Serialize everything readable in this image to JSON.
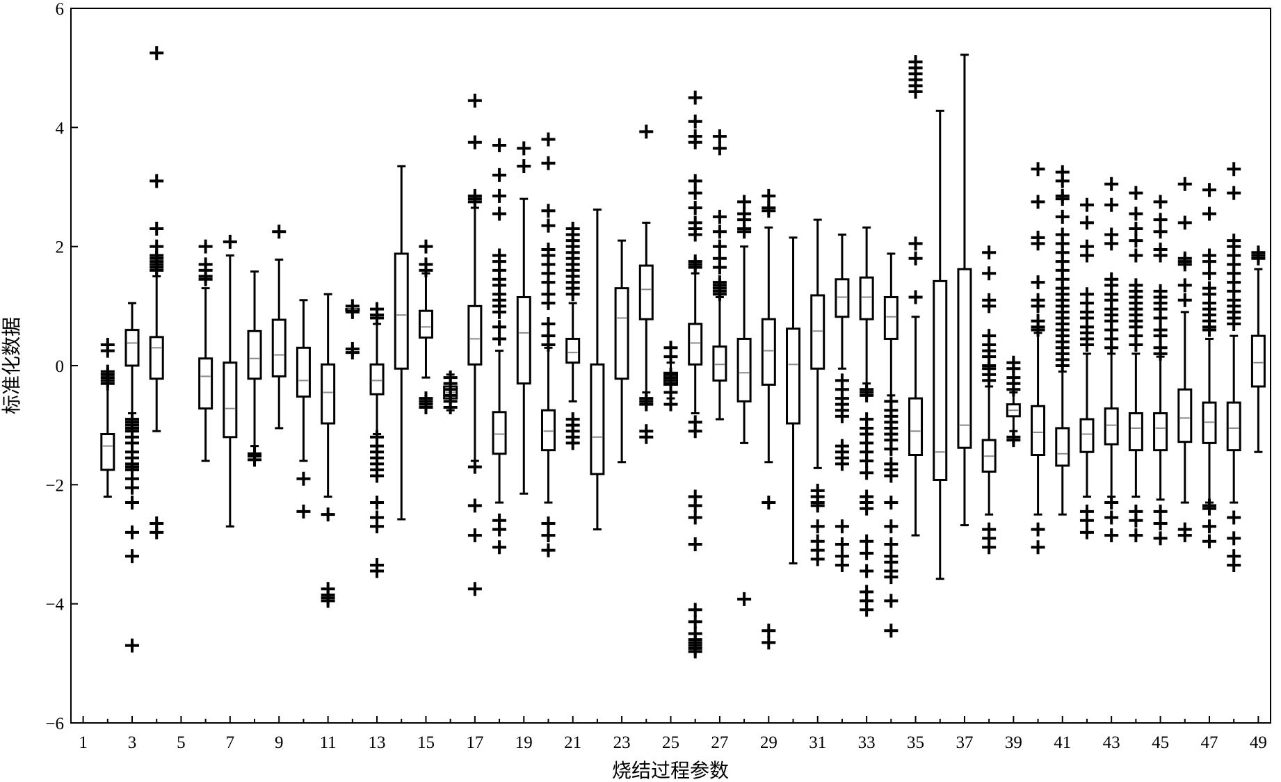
{
  "chart_data": {
    "type": "box",
    "xlabel": "烧结过程参数",
    "ylabel": "标准化数据",
    "xlim": [
      0.5,
      49.5
    ],
    "ylim": [
      -6,
      6
    ],
    "x_ticks": [
      1,
      3,
      5,
      7,
      9,
      11,
      13,
      15,
      17,
      19,
      21,
      23,
      25,
      27,
      29,
      31,
      33,
      35,
      37,
      39,
      41,
      43,
      45,
      47,
      49
    ],
    "y_ticks": [
      6,
      4,
      2,
      0,
      -2,
      -4,
      -6
    ],
    "y_tick_labels": [
      "6",
      "4",
      "2",
      "0",
      "−2",
      "−4",
      "−6"
    ],
    "boxes": [
      {
        "x": 1,
        "empty": true
      },
      {
        "x": 2,
        "q1": -1.75,
        "median": -1.35,
        "q3": -1.15,
        "whisker_low": -2.2,
        "whisker_high": -0.3,
        "outliers": [
          0.35,
          0.25,
          -0.1,
          -0.15,
          -0.2,
          -0.25,
          -0.3
        ]
      },
      {
        "x": 3,
        "q1": 0.0,
        "median": 0.38,
        "q3": 0.6,
        "whisker_low": -0.8,
        "whisker_high": 1.05,
        "outliers": [
          -0.9,
          -0.95,
          -1.0,
          -1.05,
          -1.1,
          -1.2,
          -1.3,
          -1.45,
          -1.55,
          -1.65,
          -1.7,
          -1.75,
          -1.9,
          -2.05,
          -2.3,
          -2.8,
          -3.2,
          -4.7
        ]
      },
      {
        "x": 4,
        "q1": -0.22,
        "median": 0.3,
        "q3": 0.48,
        "whisker_low": -1.1,
        "whisker_high": 1.5,
        "outliers": [
          5.25,
          3.1,
          2.3,
          2.0,
          1.85,
          1.8,
          1.75,
          1.7,
          1.65,
          1.6,
          -2.65,
          -2.8
        ]
      },
      {
        "x": 5,
        "empty": true
      },
      {
        "x": 6,
        "q1": -0.72,
        "median": -0.18,
        "q3": 0.12,
        "whisker_low": -1.6,
        "whisker_high": 1.3,
        "outliers": [
          2.0,
          1.7,
          1.6,
          1.5,
          1.45
        ]
      },
      {
        "x": 7,
        "q1": -1.2,
        "median": -0.72,
        "q3": 0.05,
        "whisker_low": -2.7,
        "whisker_high": 1.85,
        "outliers": [
          2.08
        ]
      },
      {
        "x": 8,
        "q1": -0.22,
        "median": 0.12,
        "q3": 0.58,
        "whisker_low": -1.35,
        "whisker_high": 1.58,
        "outliers": [
          -1.48,
          -1.52,
          -1.58
        ]
      },
      {
        "x": 9,
        "q1": -0.18,
        "median": 0.18,
        "q3": 0.77,
        "whisker_low": -1.05,
        "whisker_high": 1.78,
        "outliers": [
          2.25
        ]
      },
      {
        "x": 10,
        "q1": -0.52,
        "median": -0.25,
        "q3": 0.3,
        "whisker_low": -1.6,
        "whisker_high": 1.1,
        "outliers": [
          -1.9,
          -2.45
        ]
      },
      {
        "x": 11,
        "q1": -0.97,
        "median": -0.45,
        "q3": 0.02,
        "whisker_low": -2.2,
        "whisker_high": 1.2,
        "outliers": [
          -2.5,
          -3.75,
          -3.85,
          -3.9,
          -3.95
        ]
      },
      {
        "x": 12,
        "q1": 0.95,
        "median": 0.95,
        "q3": 0.95,
        "whisker_low": 0.95,
        "whisker_high": 0.95,
        "outliers": [
          1.0,
          0.9,
          0.28,
          0.22
        ]
      },
      {
        "x": 13,
        "q1": -0.48,
        "median": -0.25,
        "q3": 0.02,
        "whisker_low": -1.15,
        "whisker_high": 0.7,
        "outliers": [
          0.95,
          0.85,
          0.8,
          -1.2,
          -1.35,
          -1.45,
          -1.55,
          -1.65,
          -1.75,
          -1.85,
          -2.3,
          -2.55,
          -2.7,
          -3.35,
          -3.45
        ]
      },
      {
        "x": 14,
        "q1": -0.05,
        "median": 0.85,
        "q3": 1.88,
        "whisker_low": -2.58,
        "whisker_high": 3.35,
        "outliers": []
      },
      {
        "x": 15,
        "q1": 0.47,
        "median": 0.65,
        "q3": 0.92,
        "whisker_low": -0.2,
        "whisker_high": 1.55,
        "outliers": [
          2.0,
          1.7,
          1.6,
          -0.55,
          -0.6,
          -0.65,
          -0.7
        ]
      },
      {
        "x": 16,
        "q1": -0.55,
        "median": -0.45,
        "q3": -0.35,
        "whisker_low": -0.75,
        "whisker_high": -0.15,
        "outliers": [
          -0.2,
          -0.3,
          -0.4,
          -0.5,
          -0.6,
          -0.7
        ]
      },
      {
        "x": 17,
        "q1": 0.02,
        "median": 0.45,
        "q3": 1.0,
        "whisker_low": -1.6,
        "whisker_high": 2.65,
        "outliers": [
          4.45,
          3.75,
          2.85,
          2.8,
          2.75,
          -1.7,
          -2.35,
          -2.85,
          -3.75
        ]
      },
      {
        "x": 18,
        "q1": -1.48,
        "median": -1.15,
        "q3": -0.78,
        "whisker_low": -2.3,
        "whisker_high": 0.25,
        "outliers": [
          3.7,
          3.2,
          2.85,
          2.55,
          1.85,
          1.75,
          1.6,
          1.45,
          1.35,
          1.2,
          1.1,
          1.0,
          0.9,
          0.65,
          0.45,
          -2.6,
          -2.75,
          -3.05
        ]
      },
      {
        "x": 19,
        "q1": -0.3,
        "median": 0.55,
        "q3": 1.15,
        "whisker_low": -2.15,
        "whisker_high": 2.8,
        "outliers": [
          3.65,
          3.35
        ]
      },
      {
        "x": 20,
        "q1": -1.42,
        "median": -1.1,
        "q3": -0.75,
        "whisker_low": -2.3,
        "whisker_high": 0.3,
        "outliers": [
          3.8,
          3.4,
          2.6,
          2.35,
          1.95,
          1.85,
          1.7,
          1.55,
          1.4,
          1.2,
          1.05,
          0.7,
          0.5,
          0.35,
          -2.65,
          -2.85,
          -3.1
        ]
      },
      {
        "x": 21,
        "q1": 0.05,
        "median": 0.22,
        "q3": 0.45,
        "whisker_low": -0.6,
        "whisker_high": 1.05,
        "outliers": [
          2.3,
          2.2,
          2.1,
          2.0,
          1.9,
          1.8,
          1.7,
          1.6,
          1.5,
          1.4,
          1.3,
          1.2,
          -0.9,
          -1.0,
          -1.1,
          -1.2,
          -1.3
        ]
      },
      {
        "x": 22,
        "q1": -1.82,
        "median": -1.2,
        "q3": 0.02,
        "whisker_low": -2.75,
        "whisker_high": 2.62,
        "outliers": []
      },
      {
        "x": 23,
        "q1": -0.22,
        "median": 0.8,
        "q3": 1.3,
        "whisker_low": -1.62,
        "whisker_high": 2.1,
        "outliers": []
      },
      {
        "x": 24,
        "q1": 0.78,
        "median": 1.28,
        "q3": 1.68,
        "whisker_low": -0.45,
        "whisker_high": 2.4,
        "outliers": [
          3.93,
          -0.55,
          -0.6,
          -0.65,
          -1.1,
          -1.2
        ]
      },
      {
        "x": 25,
        "q1": -0.32,
        "median": -0.22,
        "q3": -0.12,
        "whisker_low": -0.55,
        "whisker_high": 0.05,
        "outliers": [
          0.3,
          0.15,
          -0.15,
          -0.2,
          -0.25,
          -0.3,
          -0.45,
          -0.65
        ]
      },
      {
        "x": 26,
        "q1": 0.02,
        "median": 0.38,
        "q3": 0.7,
        "whisker_low": -0.8,
        "whisker_high": 1.55,
        "outliers": [
          4.5,
          4.1,
          3.85,
          3.75,
          3.1,
          2.9,
          2.65,
          2.4,
          2.3,
          2.2,
          1.75,
          1.7,
          1.65,
          -0.95,
          -1.1,
          -2.2,
          -2.35,
          -2.55,
          -3.0,
          -4.1,
          -4.3,
          -4.5,
          -4.6,
          -4.65,
          -4.7,
          -4.75,
          -4.8
        ]
      },
      {
        "x": 27,
        "q1": -0.25,
        "median": 0.02,
        "q3": 0.32,
        "whisker_low": -0.9,
        "whisker_high": 1.15,
        "outliers": [
          3.85,
          3.65,
          2.5,
          2.25,
          2.0,
          1.8,
          1.65,
          1.4,
          1.35,
          1.3,
          1.25,
          1.2
        ]
      },
      {
        "x": 28,
        "q1": -0.6,
        "median": -0.12,
        "q3": 0.45,
        "whisker_low": -1.3,
        "whisker_high": 2.0,
        "outliers": [
          2.75,
          2.55,
          2.45,
          2.3,
          2.25,
          -3.92
        ]
      },
      {
        "x": 29,
        "q1": -0.32,
        "median": 0.25,
        "q3": 0.78,
        "whisker_low": -1.62,
        "whisker_high": 2.32,
        "outliers": [
          2.85,
          2.65,
          2.6,
          -2.3,
          -4.45,
          -4.65
        ]
      },
      {
        "x": 30,
        "q1": -0.97,
        "median": 0.02,
        "q3": 0.62,
        "whisker_low": -3.32,
        "whisker_high": 2.15,
        "outliers": []
      },
      {
        "x": 31,
        "q1": -0.05,
        "median": 0.58,
        "q3": 1.18,
        "whisker_low": -1.72,
        "whisker_high": 2.45,
        "outliers": [
          -2.1,
          -2.2,
          -2.3,
          -2.35,
          -2.7,
          -2.95,
          -3.1,
          -3.25
        ]
      },
      {
        "x": 32,
        "q1": 0.82,
        "median": 1.15,
        "q3": 1.45,
        "whisker_low": -0.05,
        "whisker_high": 2.2,
        "outliers": [
          -0.25,
          -0.4,
          -0.55,
          -0.65,
          -0.75,
          -0.85,
          -1.35,
          -1.45,
          -1.55,
          -1.65,
          -2.7,
          -3.0,
          -3.2,
          -3.35
        ]
      },
      {
        "x": 33,
        "q1": 0.78,
        "median": 1.15,
        "q3": 1.48,
        "whisker_low": -0.3,
        "whisker_high": 2.32,
        "outliers": [
          -0.4,
          -0.45,
          -0.5,
          -0.9,
          -1.05,
          -1.15,
          -1.3,
          -1.45,
          -1.6,
          -1.8,
          -2.2,
          -2.3,
          -2.4,
          -2.95,
          -3.15,
          -3.45,
          -3.8,
          -3.95,
          -4.1
        ]
      },
      {
        "x": 34,
        "q1": 0.45,
        "median": 0.82,
        "q3": 1.15,
        "whisker_low": -0.5,
        "whisker_high": 1.88,
        "outliers": [
          -0.6,
          -0.75,
          -0.85,
          -0.95,
          -1.05,
          -1.15,
          -1.25,
          -1.4,
          -1.65,
          -1.75,
          -1.85,
          -2.3,
          -2.7,
          -3.0,
          -3.2,
          -3.3,
          -3.45,
          -3.55,
          -3.95,
          -4.45
        ]
      },
      {
        "x": 35,
        "q1": -1.5,
        "median": -1.1,
        "q3": -0.55,
        "whisker_low": -2.85,
        "whisker_high": 0.82,
        "outliers": [
          2.05,
          1.8,
          1.15,
          5.1,
          5.0,
          4.9,
          4.8,
          4.7,
          4.6
        ]
      },
      {
        "x": 36,
        "q1": -1.92,
        "median": -1.45,
        "q3": 1.42,
        "whisker_low": -3.58,
        "whisker_high": 4.28,
        "outliers": []
      },
      {
        "x": 37,
        "q1": -1.38,
        "median": -1.0,
        "q3": 1.62,
        "whisker_low": -2.68,
        "whisker_high": 5.22,
        "outliers": []
      },
      {
        "x": 38,
        "q1": -1.78,
        "median": -1.52,
        "q3": -1.25,
        "whisker_low": -2.5,
        "whisker_high": -0.35,
        "outliers": [
          1.9,
          1.55,
          1.1,
          1.0,
          0.5,
          0.35,
          0.25,
          0.15,
          0.0,
          -0.05,
          -0.15,
          -0.25,
          -2.75,
          -2.9,
          -3.05
        ]
      },
      {
        "x": 39,
        "q1": -0.85,
        "median": -0.75,
        "q3": -0.65,
        "whisker_low": -1.1,
        "whisker_high": -0.45,
        "outliers": [
          0.05,
          -0.05,
          -0.2,
          -0.3,
          -0.4,
          -1.2,
          -1.25
        ]
      },
      {
        "x": 40,
        "q1": -1.5,
        "median": -1.12,
        "q3": -0.68,
        "whisker_low": -2.5,
        "whisker_high": 0.55,
        "outliers": [
          3.3,
          2.75,
          2.15,
          2.05,
          1.4,
          1.1,
          1.0,
          0.75,
          0.65,
          0.6,
          -2.75,
          -3.05
        ]
      },
      {
        "x": 41,
        "q1": -1.68,
        "median": -1.48,
        "q3": -1.05,
        "whisker_low": -2.5,
        "whisker_high": -0.1,
        "outliers": [
          3.25,
          3.1,
          2.85,
          2.8,
          2.5,
          2.2,
          2.05,
          1.9,
          1.75,
          1.6,
          1.45,
          1.3,
          1.2,
          1.1,
          1.0,
          0.9,
          0.8,
          0.7,
          0.6,
          0.5,
          0.4,
          0.3,
          0.2,
          0.1,
          0.0
        ]
      },
      {
        "x": 42,
        "q1": -1.45,
        "median": -1.15,
        "q3": -0.9,
        "whisker_low": -2.2,
        "whisker_high": 0.2,
        "outliers": [
          2.7,
          2.4,
          2.0,
          1.85,
          1.2,
          1.05,
          0.9,
          0.8,
          0.65,
          0.55,
          0.45,
          0.35,
          -2.45,
          -2.6,
          -2.8
        ]
      },
      {
        "x": 43,
        "q1": -1.32,
        "median": -1.0,
        "q3": -0.72,
        "whisker_low": -2.2,
        "whisker_high": 0.2,
        "outliers": [
          3.05,
          2.7,
          2.2,
          2.05,
          1.45,
          1.35,
          1.2,
          1.1,
          0.95,
          0.85,
          0.75,
          0.6,
          0.45,
          0.3,
          -2.3,
          -2.55,
          -2.85
        ]
      },
      {
        "x": 44,
        "q1": -1.42,
        "median": -1.05,
        "q3": -0.8,
        "whisker_low": -2.2,
        "whisker_high": 0.2,
        "outliers": [
          2.9,
          2.55,
          2.3,
          2.1,
          1.85,
          1.35,
          1.25,
          1.15,
          1.05,
          0.95,
          0.85,
          0.75,
          0.65,
          0.5,
          0.35,
          -2.45,
          -2.6,
          -2.85
        ]
      },
      {
        "x": 45,
        "q1": -1.42,
        "median": -1.05,
        "q3": -0.8,
        "whisker_low": -2.25,
        "whisker_high": 0.15,
        "outliers": [
          2.75,
          2.45,
          2.25,
          1.95,
          1.85,
          1.25,
          1.15,
          1.05,
          0.95,
          0.8,
          0.6,
          0.5,
          0.3,
          0.2,
          -2.45,
          -2.65,
          -2.9
        ]
      },
      {
        "x": 46,
        "q1": -1.28,
        "median": -0.88,
        "q3": -0.4,
        "whisker_low": -2.3,
        "whisker_high": 0.9,
        "outliers": [
          3.05,
          2.4,
          1.8,
          1.75,
          1.7,
          1.35,
          1.1,
          -2.75,
          -2.85
        ]
      },
      {
        "x": 47,
        "q1": -1.3,
        "median": -0.95,
        "q3": -0.62,
        "whisker_low": -2.3,
        "whisker_high": 0.45,
        "outliers": [
          2.95,
          2.55,
          1.85,
          1.75,
          1.55,
          1.3,
          1.2,
          1.05,
          0.95,
          0.85,
          0.75,
          0.65,
          0.6,
          -2.35,
          -2.4,
          -2.7,
          -2.95
        ]
      },
      {
        "x": 48,
        "q1": -1.42,
        "median": -1.05,
        "q3": -0.62,
        "whisker_low": -2.3,
        "whisker_high": 0.5,
        "outliers": [
          3.3,
          2.9,
          2.1,
          2.0,
          1.85,
          1.7,
          1.55,
          1.4,
          1.25,
          1.1,
          1.0,
          0.9,
          0.8,
          0.7,
          -2.55,
          -2.9,
          -3.2,
          -3.35
        ]
      },
      {
        "x": 49,
        "q1": -0.35,
        "median": 0.05,
        "q3": 0.5,
        "whisker_low": -1.45,
        "whisker_high": 1.62,
        "outliers": [
          1.9,
          1.85,
          1.8
        ]
      }
    ]
  }
}
